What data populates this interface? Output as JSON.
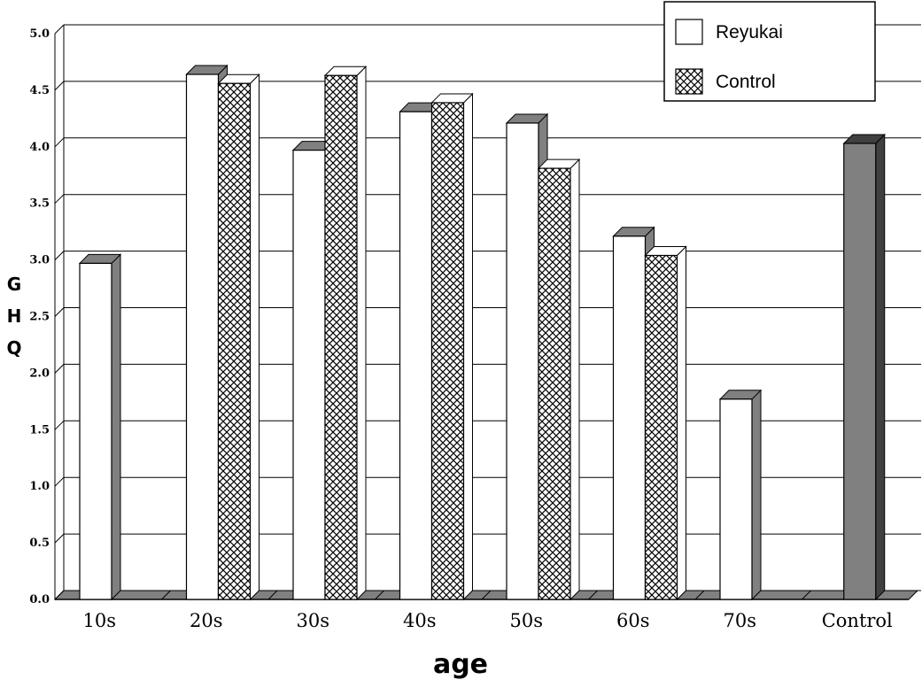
{
  "chart_data": {
    "type": "bar",
    "categories": [
      "10s",
      "20s",
      "30s",
      "40s",
      "50s",
      "60s",
      "70s",
      "Control"
    ],
    "series": [
      {
        "name": "Reyukai",
        "values": [
          2.97,
          4.64,
          3.97,
          4.31,
          4.21,
          3.21,
          1.77,
          null
        ]
      },
      {
        "name": "Control",
        "values": [
          null,
          4.56,
          4.63,
          4.39,
          3.81,
          3.04,
          null,
          4.03
        ]
      }
    ],
    "xlabel": "age",
    "ylabel": "GHQ",
    "ylim": [
      0,
      5
    ],
    "yticks": [
      "0.0",
      "0.5",
      "1.0",
      "1.5",
      "2.0",
      "2.5",
      "3.0",
      "3.5",
      "4.0",
      "4.5",
      "5.0"
    ],
    "grid": true,
    "legend_position": "top-right",
    "style": "3d-bar",
    "colors": {
      "reyukai_fill": "#ffffff",
      "control_pattern": "#000000",
      "overall_control_fill": "#808080",
      "side_face": "#808080",
      "dark_side": "#404040",
      "floor": "#808080"
    }
  }
}
